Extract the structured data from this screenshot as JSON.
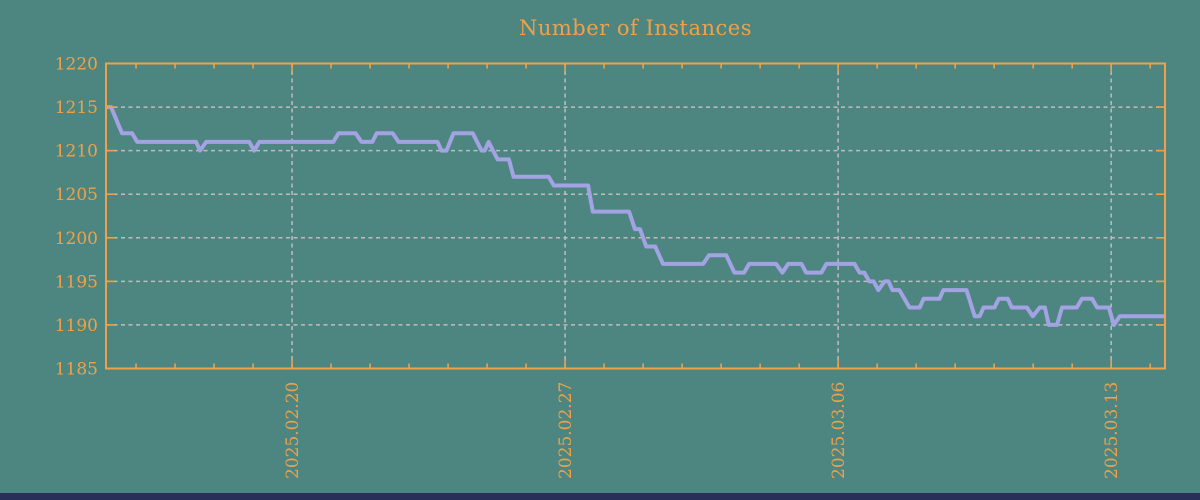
{
  "title": "Number of Instances",
  "colors": {
    "background": "#4d8680",
    "accent_orange": "#efa14a",
    "line": "#a3a3e3",
    "grid": "#bdbdbd",
    "bottom_bar": "#28305a"
  },
  "chart_data": {
    "type": "line",
    "title": "Number of Instances",
    "xlabel": "",
    "ylabel": "",
    "grid": true,
    "legend": "none",
    "ylim": [
      1185,
      1220
    ],
    "yticks": [
      1185,
      1190,
      1195,
      1200,
      1205,
      1210,
      1215,
      1220
    ],
    "xlim_days": [
      0,
      27.15
    ],
    "xticks": [
      {
        "day": 4.77,
        "label": "2025.02.20"
      },
      {
        "day": 11.77,
        "label": "2025.02.27"
      },
      {
        "day": 18.77,
        "label": "2025.03.06"
      },
      {
        "day": 25.77,
        "label": "2025.03.13"
      }
    ],
    "minor_xticks": {
      "first_day": 0.77,
      "interval_days": 1
    },
    "series": [
      {
        "name": "instances",
        "points": [
          [
            0.0,
            1215
          ],
          [
            0.13,
            1215
          ],
          [
            0.41,
            1212
          ],
          [
            0.67,
            1212
          ],
          [
            0.8,
            1211
          ],
          [
            2.31,
            1211
          ],
          [
            2.41,
            1210
          ],
          [
            2.57,
            1211
          ],
          [
            3.67,
            1211
          ],
          [
            3.8,
            1210
          ],
          [
            3.93,
            1211
          ],
          [
            5.83,
            1211
          ],
          [
            5.96,
            1212
          ],
          [
            6.4,
            1212
          ],
          [
            6.55,
            1211
          ],
          [
            6.83,
            1211
          ],
          [
            6.94,
            1212
          ],
          [
            7.35,
            1212
          ],
          [
            7.5,
            1211
          ],
          [
            8.5,
            1211
          ],
          [
            8.6,
            1210
          ],
          [
            8.73,
            1210
          ],
          [
            8.91,
            1212
          ],
          [
            9.4,
            1212
          ],
          [
            9.63,
            1210
          ],
          [
            9.71,
            1210
          ],
          [
            9.81,
            1211
          ],
          [
            10.04,
            1209
          ],
          [
            10.33,
            1209
          ],
          [
            10.45,
            1207
          ],
          [
            11.35,
            1207
          ],
          [
            11.48,
            1206
          ],
          [
            12.36,
            1206
          ],
          [
            12.48,
            1203
          ],
          [
            13.41,
            1203
          ],
          [
            13.56,
            1201
          ],
          [
            13.69,
            1201
          ],
          [
            13.85,
            1199
          ],
          [
            14.08,
            1199
          ],
          [
            14.28,
            1197
          ],
          [
            15.31,
            1197
          ],
          [
            15.46,
            1198
          ],
          [
            15.9,
            1198
          ],
          [
            16.11,
            1196
          ],
          [
            16.36,
            1196
          ],
          [
            16.49,
            1197
          ],
          [
            17.18,
            1197
          ],
          [
            17.34,
            1196
          ],
          [
            17.49,
            1197
          ],
          [
            17.83,
            1197
          ],
          [
            17.95,
            1196
          ],
          [
            18.34,
            1196
          ],
          [
            18.47,
            1197
          ],
          [
            19.19,
            1197
          ],
          [
            19.32,
            1196
          ],
          [
            19.44,
            1196
          ],
          [
            19.57,
            1195
          ],
          [
            19.68,
            1195
          ],
          [
            19.8,
            1194
          ],
          [
            19.96,
            1195
          ],
          [
            20.06,
            1195
          ],
          [
            20.16,
            1194
          ],
          [
            20.34,
            1194
          ],
          [
            20.6,
            1192
          ],
          [
            20.86,
            1192
          ],
          [
            20.96,
            1193
          ],
          [
            21.37,
            1193
          ],
          [
            21.47,
            1194
          ],
          [
            22.06,
            1194
          ],
          [
            22.27,
            1191
          ],
          [
            22.4,
            1191
          ],
          [
            22.5,
            1192
          ],
          [
            22.78,
            1192
          ],
          [
            22.89,
            1193
          ],
          [
            23.12,
            1193
          ],
          [
            23.22,
            1192
          ],
          [
            23.61,
            1192
          ],
          [
            23.76,
            1191
          ],
          [
            23.94,
            1192
          ],
          [
            24.07,
            1192
          ],
          [
            24.17,
            1190
          ],
          [
            24.38,
            1190
          ],
          [
            24.51,
            1192
          ],
          [
            24.89,
            1192
          ],
          [
            25.02,
            1193
          ],
          [
            25.28,
            1193
          ],
          [
            25.41,
            1192
          ],
          [
            25.71,
            1192
          ],
          [
            25.84,
            1190
          ],
          [
            25.99,
            1191
          ],
          [
            27.15,
            1191
          ]
        ]
      }
    ]
  }
}
